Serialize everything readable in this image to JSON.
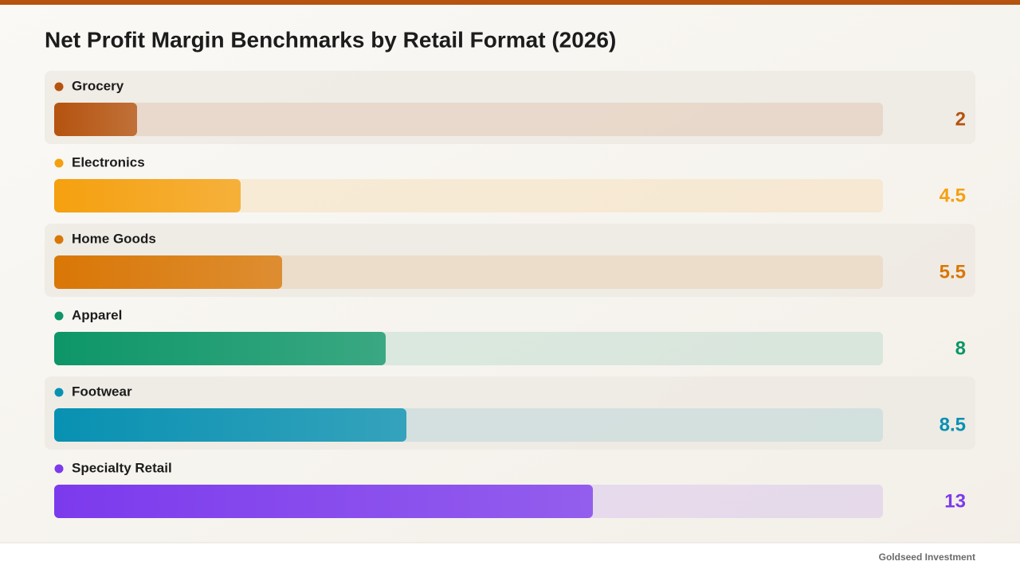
{
  "chart_data": {
    "type": "bar",
    "title": "Net Profit Margin Benchmarks by Retail Format (2026)",
    "categories": [
      "Grocery",
      "Electronics",
      "Home Goods",
      "Apparel",
      "Footwear",
      "Specialty Retail"
    ],
    "values": [
      2,
      4.5,
      5.5,
      8,
      8.5,
      13
    ],
    "colors": [
      "#b5530f",
      "#f5a00f",
      "#d97706",
      "#0d9668",
      "#0891b2",
      "#7c3aed"
    ],
    "xlim": [
      0,
      20
    ]
  },
  "footer": "Goldseed Investment"
}
